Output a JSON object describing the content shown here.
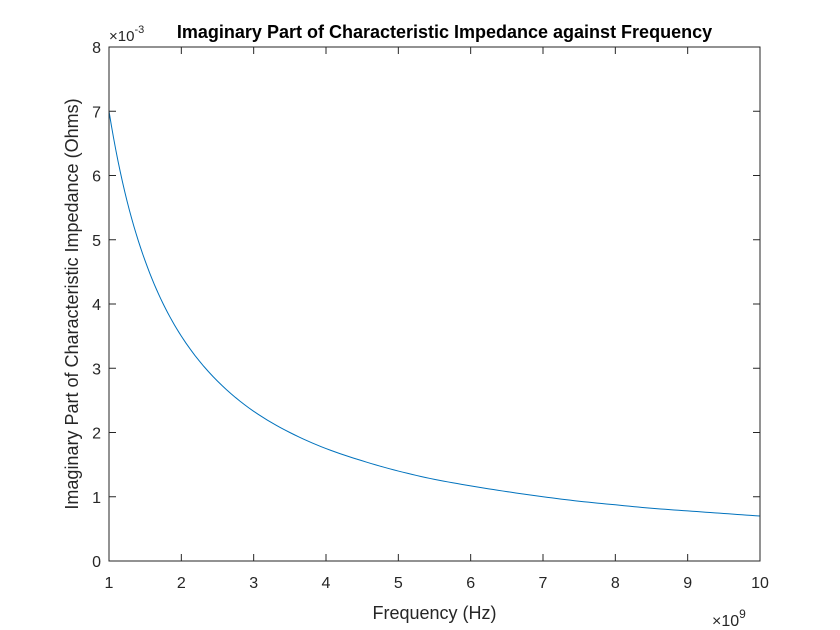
{
  "chart_data": {
    "type": "line",
    "title": "Imaginary Part of Characteristic Impedance against Frequency",
    "xlabel": "Frequency (Hz)",
    "ylabel": "Imaginary Part of Characteristic Impedance (Ohms)",
    "x_exponent_label": {
      "base": "×10",
      "power": "9"
    },
    "y_exponent_label": {
      "base": "×10",
      "power": "-3"
    },
    "xlim": [
      1,
      10
    ],
    "ylim": [
      0,
      8
    ],
    "xticks": [
      1,
      2,
      3,
      4,
      5,
      6,
      7,
      8,
      9,
      10
    ],
    "yticks": [
      0,
      1,
      2,
      3,
      4,
      5,
      6,
      7,
      8
    ],
    "grid": false,
    "series": [
      {
        "color": "#0072BD",
        "x": [
          1,
          1.25,
          1.5,
          1.75,
          2,
          2.5,
          3,
          3.5,
          4,
          4.5,
          5,
          5.5,
          6,
          6.5,
          7,
          7.5,
          8,
          8.5,
          9,
          9.5,
          10
        ],
        "y": [
          7.0,
          5.6,
          4.67,
          4.0,
          3.5,
          2.8,
          2.33,
          2.0,
          1.75,
          1.56,
          1.4,
          1.27,
          1.17,
          1.08,
          1.0,
          0.93,
          0.875,
          0.82,
          0.78,
          0.74,
          0.7
        ]
      }
    ]
  }
}
